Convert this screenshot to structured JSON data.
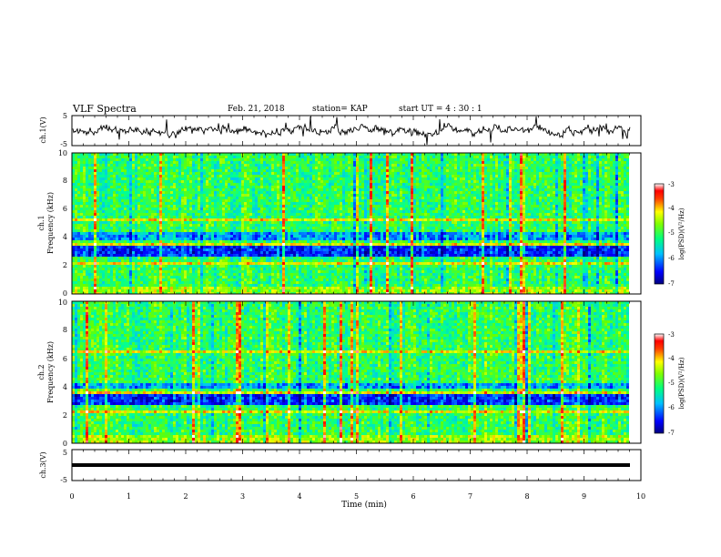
{
  "header": {
    "title": "VLF Spectra",
    "date": "Feb. 21, 2018",
    "station": "station= KAP",
    "start": "start  UT =   4 : 30 : 1"
  },
  "colorbar_colors": [
    "#000080",
    "#0000ff",
    "#0080ff",
    "#00ffff",
    "#00ff00",
    "#ffff00",
    "#ff8000",
    "#ff0000",
    "#ffffff"
  ],
  "chart_data": [
    {
      "type": "line",
      "name": "waveform ch.1",
      "ylabel": "ch.1(V)",
      "ylim": [
        -5,
        5
      ],
      "yticks": [
        "5",
        "-5"
      ],
      "xlim": [
        0,
        10
      ]
    },
    {
      "type": "heatmap",
      "name": "spectrogram ch.1",
      "ylabel_line1": "ch.1",
      "ylabel_line2": "Frequency (kHz)",
      "ylim": [
        0,
        10
      ],
      "yticks": [
        "0",
        "2",
        "4",
        "6",
        "8",
        "10"
      ],
      "xlim": [
        0,
        10
      ],
      "colorbar": {
        "label": "log(PSD)(V²/Hz)",
        "range": [
          -7,
          -3
        ],
        "ticks": [
          "-3",
          "-4",
          "-5",
          "-6",
          "-7"
        ]
      }
    },
    {
      "type": "heatmap",
      "name": "spectrogram ch.2",
      "ylabel_line1": "ch.2",
      "ylabel_line2": "Frequency (kHz)",
      "ylim": [
        0,
        10
      ],
      "yticks": [
        "0",
        "2",
        "4",
        "6",
        "8",
        "10"
      ],
      "xlim": [
        0,
        10
      ],
      "colorbar": {
        "label": "log(PSD)(V²/Hz)",
        "range": [
          -7,
          -3
        ],
        "ticks": [
          "-3",
          "-4",
          "-5",
          "-6",
          "-7"
        ]
      }
    },
    {
      "type": "line",
      "name": "waveform ch.3",
      "ylabel": "ch.3(V)",
      "ylim": [
        -5,
        5
      ],
      "yticks": [
        "5",
        "-5"
      ],
      "xlim": [
        0,
        10
      ],
      "level": -1.5
    }
  ],
  "xaxis": {
    "label": "Time (min)",
    "ticks": [
      "0",
      "1",
      "2",
      "3",
      "4",
      "5",
      "6",
      "7",
      "8",
      "9",
      "10"
    ]
  }
}
